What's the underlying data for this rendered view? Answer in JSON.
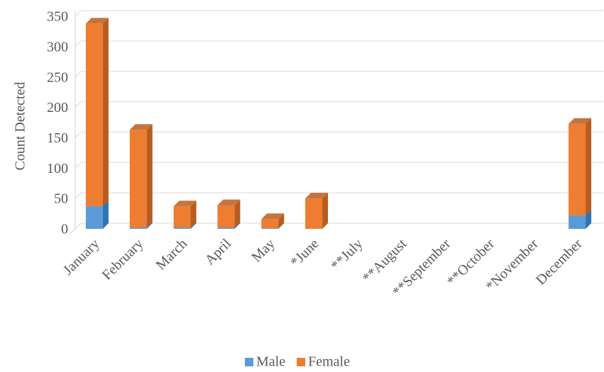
{
  "chart_data": {
    "type": "bar",
    "stacked": true,
    "y_label": "Count Detected",
    "categories": [
      "January",
      "February",
      "March",
      "April",
      "May",
      "*June",
      "**July",
      "**August",
      "**September",
      "**October",
      "*November",
      "December"
    ],
    "series": [
      {
        "name": "Male",
        "color": "#5b9bd5",
        "side_color": "#2e75b6",
        "values": [
          37,
          2,
          2,
          2,
          1,
          0,
          0,
          0,
          0,
          0,
          0,
          22
        ]
      },
      {
        "name": "Female",
        "color": "#ed7d31",
        "side_color": "#b85d1f",
        "values": [
          301,
          161,
          35,
          37,
          15,
          50,
          0,
          0,
          0,
          0,
          0,
          151
        ]
      }
    ],
    "ylim": [
      0,
      350
    ],
    "yticks": [
      0,
      50,
      100,
      150,
      200,
      250,
      300,
      350
    ],
    "grid": true,
    "legend": "bottom"
  }
}
